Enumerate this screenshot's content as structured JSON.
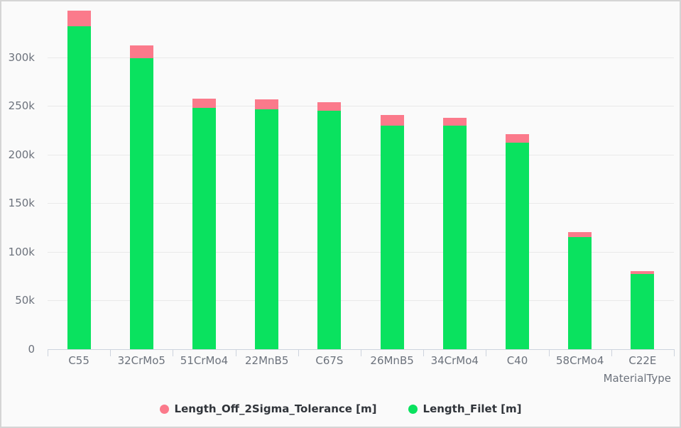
{
  "panel": {
    "background": "#fafafa",
    "border_color": "#d5d5d5"
  },
  "chart_data": {
    "type": "bar",
    "stacked": true,
    "title": "",
    "xlabel": "MaterialType",
    "ylabel": "",
    "grid": true,
    "legend_position": "bottom",
    "ylim": [
      0,
      350000
    ],
    "yticks": [
      {
        "value": 0,
        "label": "0"
      },
      {
        "value": 50000,
        "label": "50k"
      },
      {
        "value": 100000,
        "label": "100k"
      },
      {
        "value": 150000,
        "label": "150k"
      },
      {
        "value": 200000,
        "label": "200k"
      },
      {
        "value": 250000,
        "label": "250k"
      },
      {
        "value": 300000,
        "label": "300k"
      }
    ],
    "categories": [
      "C55",
      "32CrMo5",
      "51CrMo4",
      "22MnB5",
      "C67S",
      "26MnB5",
      "34CrMo4",
      "C40",
      "58CrMo4",
      "C22E"
    ],
    "series": [
      {
        "name": "Length_Off_2Sigma_Tolerance [m]",
        "color": "#fb7a8b",
        "values": [
          15500,
          13000,
          9500,
          10000,
          8500,
          10500,
          8000,
          8500,
          5000,
          3000
        ]
      },
      {
        "name": "Length_Filet [m]",
        "color": "#0ae25f",
        "values": [
          332000,
          299000,
          248000,
          246500,
          245000,
          230000,
          230000,
          212500,
          115000,
          77500
        ]
      }
    ]
  },
  "colors": {
    "gridline": "#e9e9e9",
    "axis": "#cdd3dd",
    "label_text": "#6c727c",
    "legend_text": "#30343a"
  }
}
